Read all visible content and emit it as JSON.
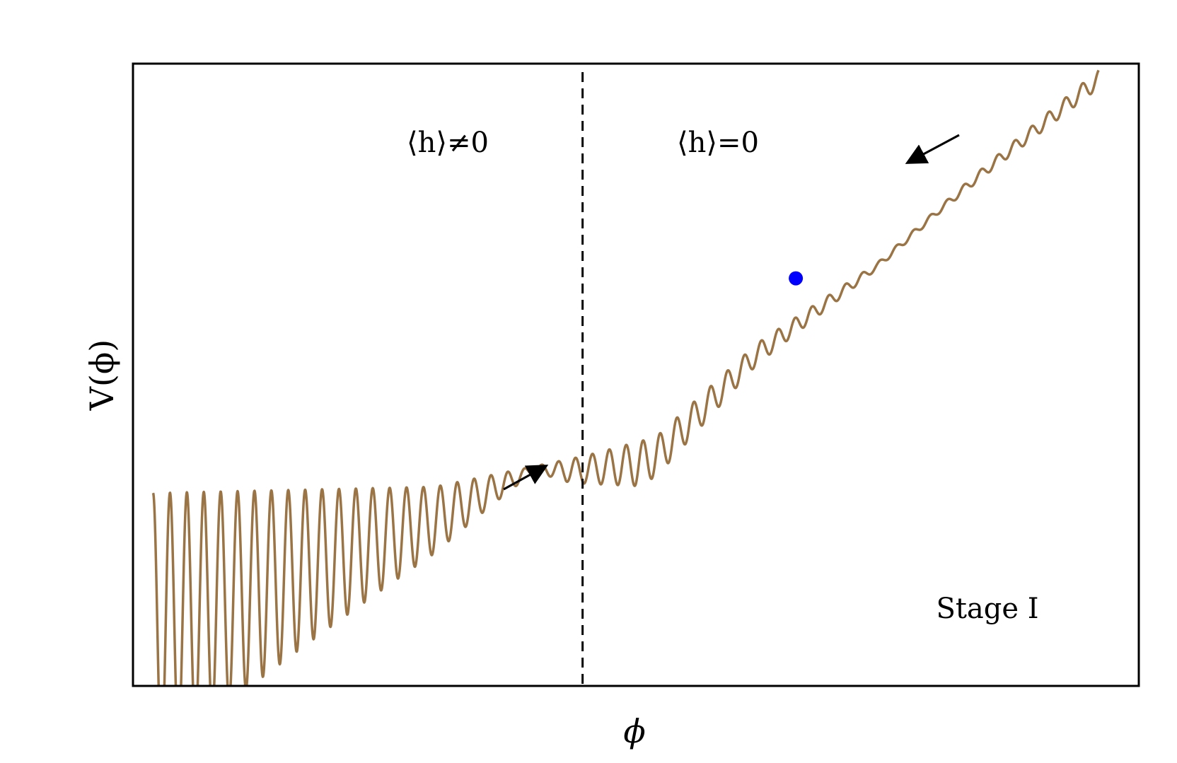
{
  "chart_data": {
    "type": "line",
    "title": "",
    "xlabel": "ϕ",
    "ylabel": "V(ϕ)",
    "grid": false,
    "legend": "none",
    "xlim": [
      0,
      1
    ],
    "ylim": [
      0,
      1
    ],
    "series": [
      {
        "color": "#9a7445",
        "description_free": true,
        "x": [
          0.02,
          0.3,
          0.45,
          0.52,
          0.62,
          0.74,
          0.85,
          0.96
        ],
        "y": [
          0.31,
          0.32,
          0.37,
          0.4,
          0.55,
          0.68,
          0.84,
          0.99
        ]
      }
    ],
    "ball": {
      "x": 0.659,
      "y": 0.655,
      "color": "#0000ff"
    },
    "divider_x": 0.447,
    "regions": [
      {
        "label": "⟨h⟩≠0",
        "side": "left"
      },
      {
        "label": "⟨h⟩=0",
        "side": "right"
      }
    ],
    "annotation": "Stage I",
    "arrows": [
      {
        "direction": "up-right",
        "side": "left"
      },
      {
        "direction": "down-left",
        "side": "right"
      }
    ]
  }
}
